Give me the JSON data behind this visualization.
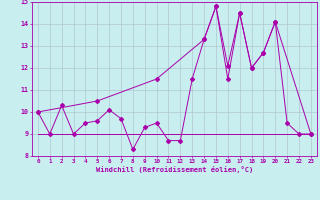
{
  "xlabel": "Windchill (Refroidissement éolien,°C)",
  "xlim": [
    -0.5,
    23.5
  ],
  "ylim": [
    8,
    15
  ],
  "yticks": [
    8,
    9,
    10,
    11,
    12,
    13,
    14,
    15
  ],
  "xticks": [
    0,
    1,
    2,
    3,
    4,
    5,
    6,
    7,
    8,
    9,
    10,
    11,
    12,
    13,
    14,
    15,
    16,
    17,
    18,
    19,
    20,
    21,
    22,
    23
  ],
  "bg_color": "#c8eef0",
  "grid_color": "#b0c8d0",
  "line_color": "#aa00aa",
  "series1_x": [
    0,
    1,
    2,
    3,
    4,
    5,
    6,
    7,
    8,
    9,
    10,
    11,
    12,
    13,
    14,
    15,
    16,
    17,
    18,
    19,
    20,
    21,
    22,
    23
  ],
  "series1_y": [
    10,
    9,
    10.3,
    9,
    9.5,
    9.6,
    10.1,
    9.7,
    8.3,
    9.3,
    9.5,
    8.7,
    8.7,
    11.5,
    13.3,
    14.8,
    11.5,
    14.5,
    12.0,
    12.7,
    14.1,
    9.5,
    9.0,
    9.0
  ],
  "series2_x": [
    0,
    23
  ],
  "series2_y": [
    9,
    9
  ],
  "series3_x": [
    0,
    5,
    10,
    14,
    15,
    16,
    17,
    18,
    19,
    20,
    23
  ],
  "series3_y": [
    10,
    10.5,
    11.5,
    13.3,
    14.8,
    12.1,
    14.5,
    12.0,
    12.7,
    14.1,
    9.0
  ]
}
